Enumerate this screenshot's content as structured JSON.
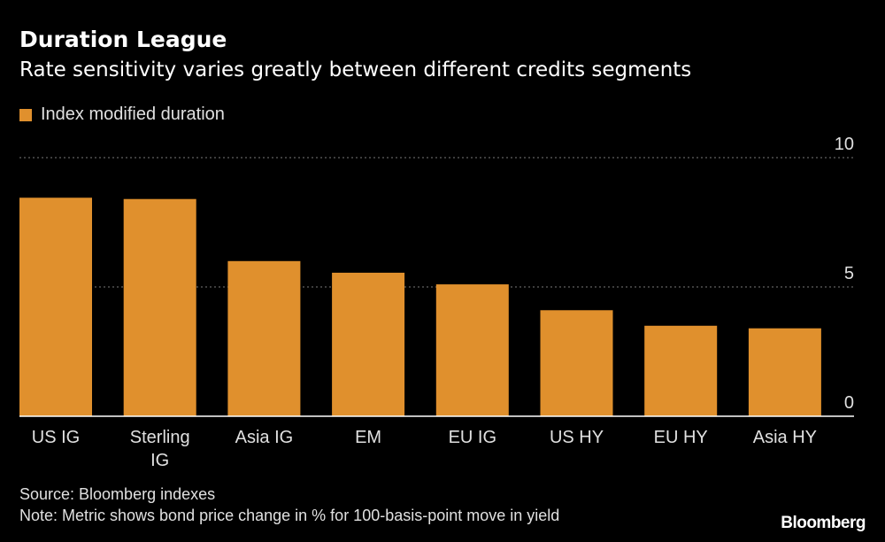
{
  "colors": {
    "background": "#000000",
    "bar": "#e0902d",
    "grid": "#7a7a7a",
    "text": "#e0e0e0",
    "title": "#ffffff"
  },
  "chart_data": {
    "type": "bar",
    "title": "Duration League",
    "subtitle": "Rate sensitivity varies greatly between different credits segments",
    "categories": [
      [
        "US IG"
      ],
      [
        "Sterling",
        "IG"
      ],
      [
        "Asia IG"
      ],
      [
        "EM"
      ],
      [
        "EU IG"
      ],
      [
        "US HY"
      ],
      [
        "EU HY"
      ],
      [
        "Asia HY"
      ]
    ],
    "series": [
      {
        "name": "Index modified duration",
        "values": [
          8.45,
          8.4,
          6.0,
          5.55,
          5.1,
          4.1,
          3.5,
          3.4
        ]
      }
    ],
    "ylim": [
      0,
      10
    ],
    "yticks": [
      0,
      5,
      10
    ],
    "ytick_labels": [
      "0",
      "5",
      "10"
    ],
    "xlabel": "",
    "ylabel": "",
    "grid": true,
    "legend_position": "top-left"
  },
  "footer": {
    "source": "Source: Bloomberg indexes",
    "note": "Note: Metric shows bond price change in % for 100-basis-point move in yield",
    "brand": "Bloomberg"
  }
}
